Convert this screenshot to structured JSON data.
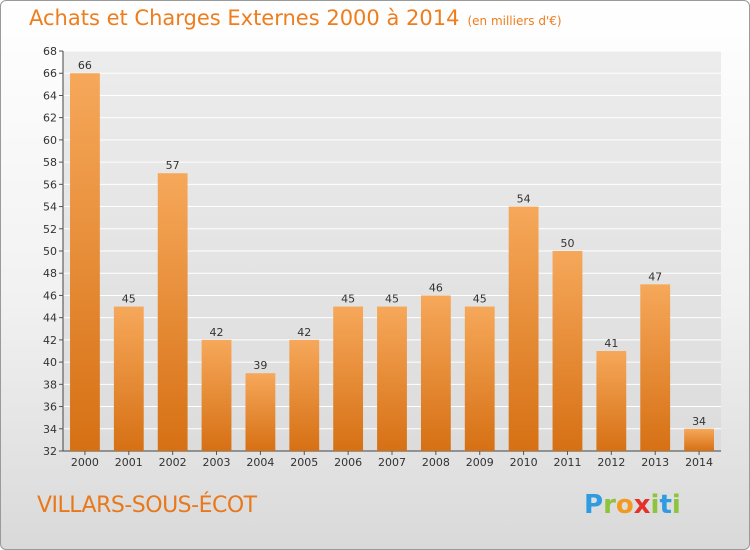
{
  "header": {
    "title": "Achats et Charges Externes 2000 à 2014",
    "subtitle": "(en milliers d'€)"
  },
  "footer": {
    "town": "VILLARS-SOUS-ÉCOT",
    "logo": [
      "P",
      "r",
      "o",
      "x",
      "i",
      "t",
      "i"
    ]
  },
  "colors": {
    "accent": "#ee7d1e",
    "bar_light": "#f6a85a",
    "bar_dark": "#d67014",
    "grid": "#ffffff"
  },
  "chart_data": {
    "type": "bar",
    "title": "Achats et Charges Externes 2000 à 2014",
    "subtitle": "(en milliers d'€)",
    "categories": [
      "2000",
      "2001",
      "2002",
      "2003",
      "2004",
      "2005",
      "2006",
      "2007",
      "2008",
      "2009",
      "2010",
      "2011",
      "2012",
      "2013",
      "2014"
    ],
    "values": [
      66,
      45,
      57,
      42,
      39,
      42,
      45,
      45,
      46,
      45,
      54,
      50,
      41,
      47,
      34
    ],
    "ylim": [
      32,
      68
    ],
    "ytick_step": 2,
    "grid": true,
    "data_labels": true
  }
}
